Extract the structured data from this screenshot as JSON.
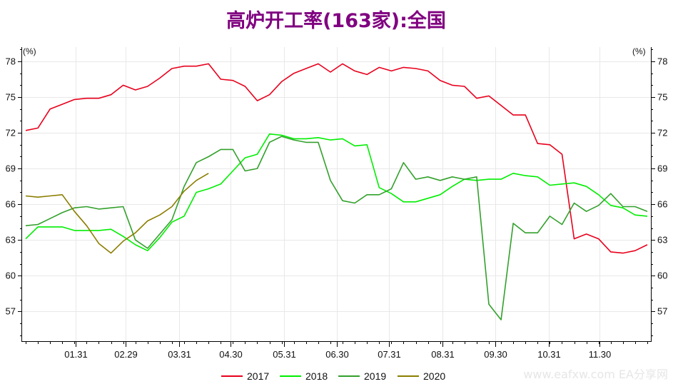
{
  "chart_data": {
    "type": "line",
    "title": "高炉开工率(163家):全国",
    "title_color": "#800080",
    "y_unit_left": "(%)",
    "y_unit_right": "(%)",
    "ylim": [
      54.5,
      79.2
    ],
    "yticks": [
      57,
      60,
      63,
      66,
      69,
      72,
      75,
      78
    ],
    "xlim": [
      0,
      52
    ],
    "x_labels": [
      {
        "label": "01.31",
        "x": 4.1
      },
      {
        "label": "02.29",
        "x": 8.2
      },
      {
        "label": "03.31",
        "x": 12.6
      },
      {
        "label": "04.30",
        "x": 16.8
      },
      {
        "label": "05.31",
        "x": 21.2
      },
      {
        "label": "06.30",
        "x": 25.5
      },
      {
        "label": "07.31",
        "x": 29.8
      },
      {
        "label": "08.31",
        "x": 34.2
      },
      {
        "label": "09.30",
        "x": 38.5
      },
      {
        "label": "10.31",
        "x": 42.9
      },
      {
        "label": "11.30",
        "x": 47.1
      }
    ],
    "grid": true,
    "legend_position": "bottom",
    "series": [
      {
        "name": "2017",
        "color": "#e8001c",
        "values": [
          72.2,
          72.4,
          74.0,
          74.4,
          74.8,
          74.9,
          74.9,
          75.2,
          76.0,
          75.6,
          75.9,
          76.6,
          77.4,
          77.6,
          77.6,
          77.8,
          76.5,
          76.4,
          75.9,
          74.7,
          75.2,
          76.3,
          77.0,
          77.4,
          77.8,
          77.1,
          77.8,
          77.2,
          76.9,
          77.5,
          77.2,
          77.5,
          77.4,
          77.2,
          76.4,
          76.0,
          75.9,
          74.9,
          75.1,
          74.3,
          73.5,
          73.5,
          71.1,
          71.0,
          70.2,
          63.1,
          63.5,
          63.1,
          62.0,
          61.9,
          62.1,
          62.6
        ]
      },
      {
        "name": "2018",
        "color": "#00ee00",
        "values": [
          63.1,
          64.1,
          64.1,
          64.1,
          63.8,
          63.8,
          63.8,
          63.9,
          63.3,
          62.6,
          62.1,
          63.2,
          64.5,
          65.0,
          67.0,
          67.3,
          67.7,
          68.8,
          69.9,
          70.2,
          71.9,
          71.8,
          71.5,
          71.5,
          71.6,
          71.4,
          71.5,
          70.9,
          71.0,
          67.4,
          66.9,
          66.2,
          66.2,
          66.5,
          66.8,
          67.5,
          68.1,
          68.0,
          68.1,
          68.1,
          68.6,
          68.4,
          68.3,
          67.6,
          67.7,
          67.8,
          67.5,
          66.8,
          65.9,
          65.7,
          65.1,
          65.0
        ]
      },
      {
        "name": "2019",
        "color": "#33a02c",
        "values": [
          64.2,
          64.3,
          64.8,
          65.3,
          65.7,
          65.8,
          65.6,
          65.7,
          65.8,
          63.0,
          62.3,
          63.5,
          64.7,
          67.5,
          69.5,
          70.0,
          70.6,
          70.6,
          68.8,
          69.0,
          71.2,
          71.7,
          71.4,
          71.2,
          71.2,
          68.0,
          66.3,
          66.1,
          66.8,
          66.8,
          67.3,
          69.5,
          68.1,
          68.3,
          68.0,
          68.3,
          68.1,
          68.3,
          57.6,
          56.3,
          64.4,
          63.6,
          63.6,
          65.0,
          64.3,
          66.1,
          65.4,
          65.9,
          66.9,
          65.8,
          65.8,
          65.4
        ]
      },
      {
        "name": "2020",
        "color": "#8b7d00",
        "values": [
          66.7,
          66.6,
          66.7,
          66.8,
          65.4,
          64.2,
          62.7,
          61.9,
          62.9,
          63.6,
          64.6,
          65.1,
          65.8,
          67.1,
          68.0,
          68.6
        ]
      }
    ]
  },
  "watermark": "www.eafxw.com  EA分享网"
}
